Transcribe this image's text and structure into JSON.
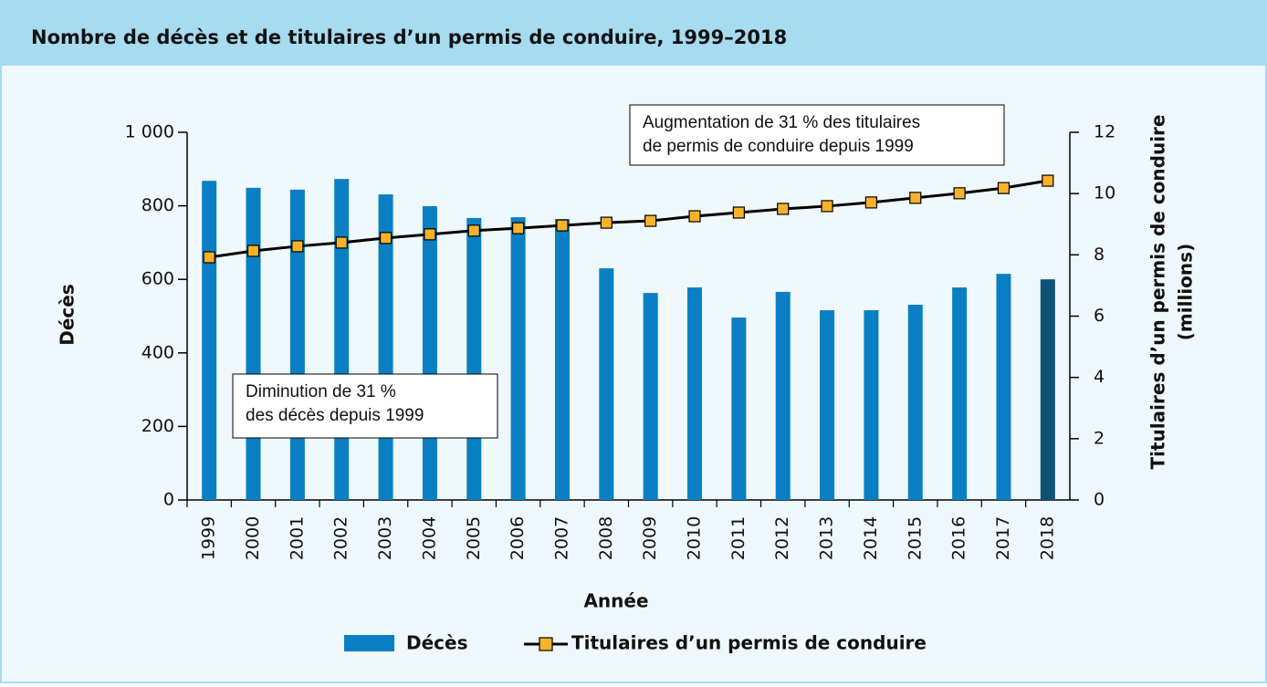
{
  "chart_data": {
    "type": "bar_line",
    "title": "Nombre de décès et de titulaires d’un permis de conduire, 1999–2018",
    "x_label": "Année",
    "y_label": "Décès",
    "y2_label": [
      "Titulaires d’un permis de conduire",
      "(millions)"
    ],
    "categories": [
      "1999",
      "2000",
      "2001",
      "2002",
      "2003",
      "2004",
      "2005",
      "2006",
      "2007",
      "2008",
      "2009",
      "2010",
      "2011",
      "2012",
      "2013",
      "2014",
      "2015",
      "2016",
      "2017",
      "2018"
    ],
    "series": [
      {
        "name": "Décès",
        "type": "bar",
        "color": "#0a7fc4",
        "colors": [
          "#0a7fc4",
          "#0a7fc4",
          "#0a7fc4",
          "#0a7fc4",
          "#0a7fc4",
          "#0a7fc4",
          "#0a7fc4",
          "#0a7fc4",
          "#0a7fc4",
          "#0a7fc4",
          "#0a7fc4",
          "#0a7fc4",
          "#0a7fc4",
          "#0a7fc4",
          "#0a7fc4",
          "#0a7fc4",
          "#0a7fc4",
          "#0a7fc4",
          "#0a7fc4",
          "#0d5275"
        ],
        "values": [
          868,
          849,
          844,
          873,
          831,
          799,
          767,
          769,
          764,
          630,
          563,
          578,
          496,
          566,
          516,
          516,
          531,
          578,
          615,
          600
        ]
      },
      {
        "name": "Titulaires d’un permis de conduire",
        "type": "line",
        "axis": "y2",
        "color": "#000000",
        "marker_color": "#f7b229",
        "values": [
          7.92,
          8.13,
          8.28,
          8.4,
          8.55,
          8.67,
          8.79,
          8.87,
          8.96,
          9.05,
          9.11,
          9.26,
          9.38,
          9.5,
          9.59,
          9.71,
          9.86,
          10.01,
          10.18,
          10.42
        ]
      }
    ],
    "ylim": [
      0,
      1000
    ],
    "yticks": [
      0,
      200,
      400,
      600,
      800,
      {
        "value": 1000,
        "label": "1 000"
      }
    ],
    "y2lim": [
      0,
      12
    ],
    "y2ticks": [
      0,
      2,
      4,
      6,
      8,
      10,
      12
    ],
    "annotations": [
      [
        "Augmentation de 31 % des titulaires",
        "de permis de conduire depuis 1999"
      ],
      [
        "Diminution de 31 %",
        "des décès depuis 1999"
      ]
    ]
  }
}
